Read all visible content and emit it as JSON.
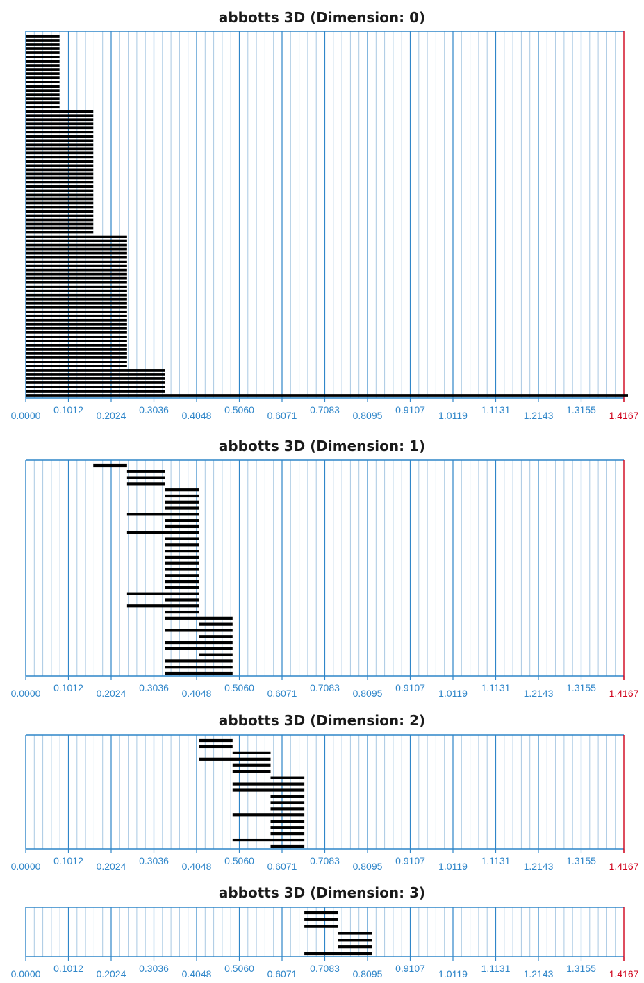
{
  "chart_data": [
    {
      "type": "barcode",
      "title": "abbotts 3D (Dimension: 0)",
      "xlim": [
        0,
        1.4167
      ],
      "tick_labels": [
        "0.0000",
        "0.1012",
        "0.2024",
        "0.3036",
        "0.4048",
        "0.5060",
        "0.6071",
        "0.7083",
        "0.8095",
        "0.9107",
        "1.0119",
        "1.1131",
        "1.2143",
        "1.3155",
        "1.4167"
      ],
      "grid": true,
      "colors": {
        "axis": "#2f86c9",
        "minor_grid": "#a9c9e3",
        "end_marker": "#d0021b",
        "bars": "#000000"
      },
      "bars": [
        [
          0,
          0.08
        ],
        [
          0,
          0.08
        ],
        [
          0,
          0.08
        ],
        [
          0,
          0.08
        ],
        [
          0,
          0.08
        ],
        [
          0,
          0.08
        ],
        [
          0,
          0.08
        ],
        [
          0,
          0.08
        ],
        [
          0,
          0.08
        ],
        [
          0,
          0.08
        ],
        [
          0,
          0.08
        ],
        [
          0,
          0.08
        ],
        [
          0,
          0.08
        ],
        [
          0,
          0.08
        ],
        [
          0,
          0.08
        ],
        [
          0,
          0.08
        ],
        [
          0,
          0.08
        ],
        [
          0,
          0.08
        ],
        [
          0,
          0.16
        ],
        [
          0,
          0.16
        ],
        [
          0,
          0.16
        ],
        [
          0,
          0.16
        ],
        [
          0,
          0.16
        ],
        [
          0,
          0.16
        ],
        [
          0,
          0.16
        ],
        [
          0,
          0.16
        ],
        [
          0,
          0.16
        ],
        [
          0,
          0.16
        ],
        [
          0,
          0.16
        ],
        [
          0,
          0.16
        ],
        [
          0,
          0.16
        ],
        [
          0,
          0.16
        ],
        [
          0,
          0.16
        ],
        [
          0,
          0.16
        ],
        [
          0,
          0.16
        ],
        [
          0,
          0.16
        ],
        [
          0,
          0.16
        ],
        [
          0,
          0.16
        ],
        [
          0,
          0.16
        ],
        [
          0,
          0.16
        ],
        [
          0,
          0.16
        ],
        [
          0,
          0.16
        ],
        [
          0,
          0.16
        ],
        [
          0,
          0.16
        ],
        [
          0,
          0.16
        ],
        [
          0,
          0.16
        ],
        [
          0,
          0.16
        ],
        [
          0,
          0.16
        ],
        [
          0,
          0.24
        ],
        [
          0,
          0.24
        ],
        [
          0,
          0.24
        ],
        [
          0,
          0.24
        ],
        [
          0,
          0.24
        ],
        [
          0,
          0.24
        ],
        [
          0,
          0.24
        ],
        [
          0,
          0.24
        ],
        [
          0,
          0.24
        ],
        [
          0,
          0.24
        ],
        [
          0,
          0.24
        ],
        [
          0,
          0.24
        ],
        [
          0,
          0.24
        ],
        [
          0,
          0.24
        ],
        [
          0,
          0.24
        ],
        [
          0,
          0.24
        ],
        [
          0,
          0.24
        ],
        [
          0,
          0.24
        ],
        [
          0,
          0.24
        ],
        [
          0,
          0.24
        ],
        [
          0,
          0.24
        ],
        [
          0,
          0.24
        ],
        [
          0,
          0.24
        ],
        [
          0,
          0.24
        ],
        [
          0,
          0.24
        ],
        [
          0,
          0.24
        ],
        [
          0,
          0.24
        ],
        [
          0,
          0.24
        ],
        [
          0,
          0.24
        ],
        [
          0,
          0.24
        ],
        [
          0,
          0.24
        ],
        [
          0,
          0.24
        ],
        [
          0,
          0.33
        ],
        [
          0,
          0.33
        ],
        [
          0,
          0.33
        ],
        [
          0,
          0.33
        ],
        [
          0,
          0.33
        ],
        [
          0,
          0.33
        ],
        [
          0,
          1.4167
        ]
      ]
    },
    {
      "type": "barcode",
      "title": "abbotts 3D (Dimension: 1)",
      "xlim": [
        0,
        1.4167
      ],
      "tick_labels": [
        "0.0000",
        "0.1012",
        "0.2024",
        "0.3036",
        "0.4048",
        "0.5060",
        "0.6071",
        "0.7083",
        "0.8095",
        "0.9107",
        "1.0119",
        "1.1131",
        "1.2143",
        "1.3155",
        "1.4167"
      ],
      "grid": true,
      "colors": {
        "axis": "#2f86c9",
        "minor_grid": "#a9c9e3",
        "end_marker": "#d0021b",
        "bars": "#000000"
      },
      "bars": [
        [
          0.16,
          0.24
        ],
        [
          0.24,
          0.33
        ],
        [
          0.24,
          0.33
        ],
        [
          0.24,
          0.33
        ],
        [
          0.33,
          0.41
        ],
        [
          0.33,
          0.41
        ],
        [
          0.33,
          0.41
        ],
        [
          0.33,
          0.41
        ],
        [
          0.24,
          0.41
        ],
        [
          0.33,
          0.41
        ],
        [
          0.33,
          0.41
        ],
        [
          0.24,
          0.41
        ],
        [
          0.33,
          0.41
        ],
        [
          0.33,
          0.41
        ],
        [
          0.33,
          0.41
        ],
        [
          0.33,
          0.41
        ],
        [
          0.33,
          0.41
        ],
        [
          0.33,
          0.41
        ],
        [
          0.33,
          0.41
        ],
        [
          0.33,
          0.41
        ],
        [
          0.33,
          0.41
        ],
        [
          0.24,
          0.41
        ],
        [
          0.33,
          0.41
        ],
        [
          0.24,
          0.41
        ],
        [
          0.33,
          0.41
        ],
        [
          0.33,
          0.49
        ],
        [
          0.41,
          0.49
        ],
        [
          0.33,
          0.49
        ],
        [
          0.41,
          0.49
        ],
        [
          0.33,
          0.49
        ],
        [
          0.33,
          0.49
        ],
        [
          0.41,
          0.49
        ],
        [
          0.33,
          0.49
        ],
        [
          0.33,
          0.49
        ],
        [
          0.33,
          0.49
        ]
      ]
    },
    {
      "type": "barcode",
      "title": "abbotts 3D (Dimension: 2)",
      "xlim": [
        0,
        1.4167
      ],
      "tick_labels": [
        "0.0000",
        "0.1012",
        "0.2024",
        "0.3036",
        "0.4048",
        "0.5060",
        "0.6071",
        "0.7083",
        "0.8095",
        "0.9107",
        "1.0119",
        "1.1131",
        "1.2143",
        "1.3155",
        "1.4167"
      ],
      "grid": true,
      "colors": {
        "axis": "#2f86c9",
        "minor_grid": "#a9c9e3",
        "end_marker": "#d0021b",
        "bars": "#000000"
      },
      "bars": [
        [
          0.41,
          0.49
        ],
        [
          0.41,
          0.49
        ],
        [
          0.49,
          0.58
        ],
        [
          0.41,
          0.58
        ],
        [
          0.49,
          0.58
        ],
        [
          0.49,
          0.58
        ],
        [
          0.58,
          0.66
        ],
        [
          0.49,
          0.66
        ],
        [
          0.49,
          0.66
        ],
        [
          0.58,
          0.66
        ],
        [
          0.58,
          0.66
        ],
        [
          0.58,
          0.66
        ],
        [
          0.49,
          0.66
        ],
        [
          0.58,
          0.66
        ],
        [
          0.58,
          0.66
        ],
        [
          0.58,
          0.66
        ],
        [
          0.49,
          0.66
        ],
        [
          0.58,
          0.66
        ]
      ]
    },
    {
      "type": "barcode",
      "title": "abbotts 3D (Dimension: 3)",
      "xlim": [
        0,
        1.4167
      ],
      "tick_labels": [
        "0.0000",
        "0.1012",
        "0.2024",
        "0.3036",
        "0.4048",
        "0.5060",
        "0.6071",
        "0.7083",
        "0.8095",
        "0.9107",
        "1.0119",
        "1.1131",
        "1.2143",
        "1.3155",
        "1.4167"
      ],
      "grid": true,
      "colors": {
        "axis": "#2f86c9",
        "minor_grid": "#a9c9e3",
        "end_marker": "#d0021b",
        "bars": "#000000"
      },
      "bars": [
        [
          0.66,
          0.74
        ],
        [
          0.66,
          0.74
        ],
        [
          0.66,
          0.74
        ],
        [
          0.74,
          0.82
        ],
        [
          0.74,
          0.82
        ],
        [
          0.74,
          0.82
        ],
        [
          0.66,
          0.82
        ]
      ]
    }
  ]
}
